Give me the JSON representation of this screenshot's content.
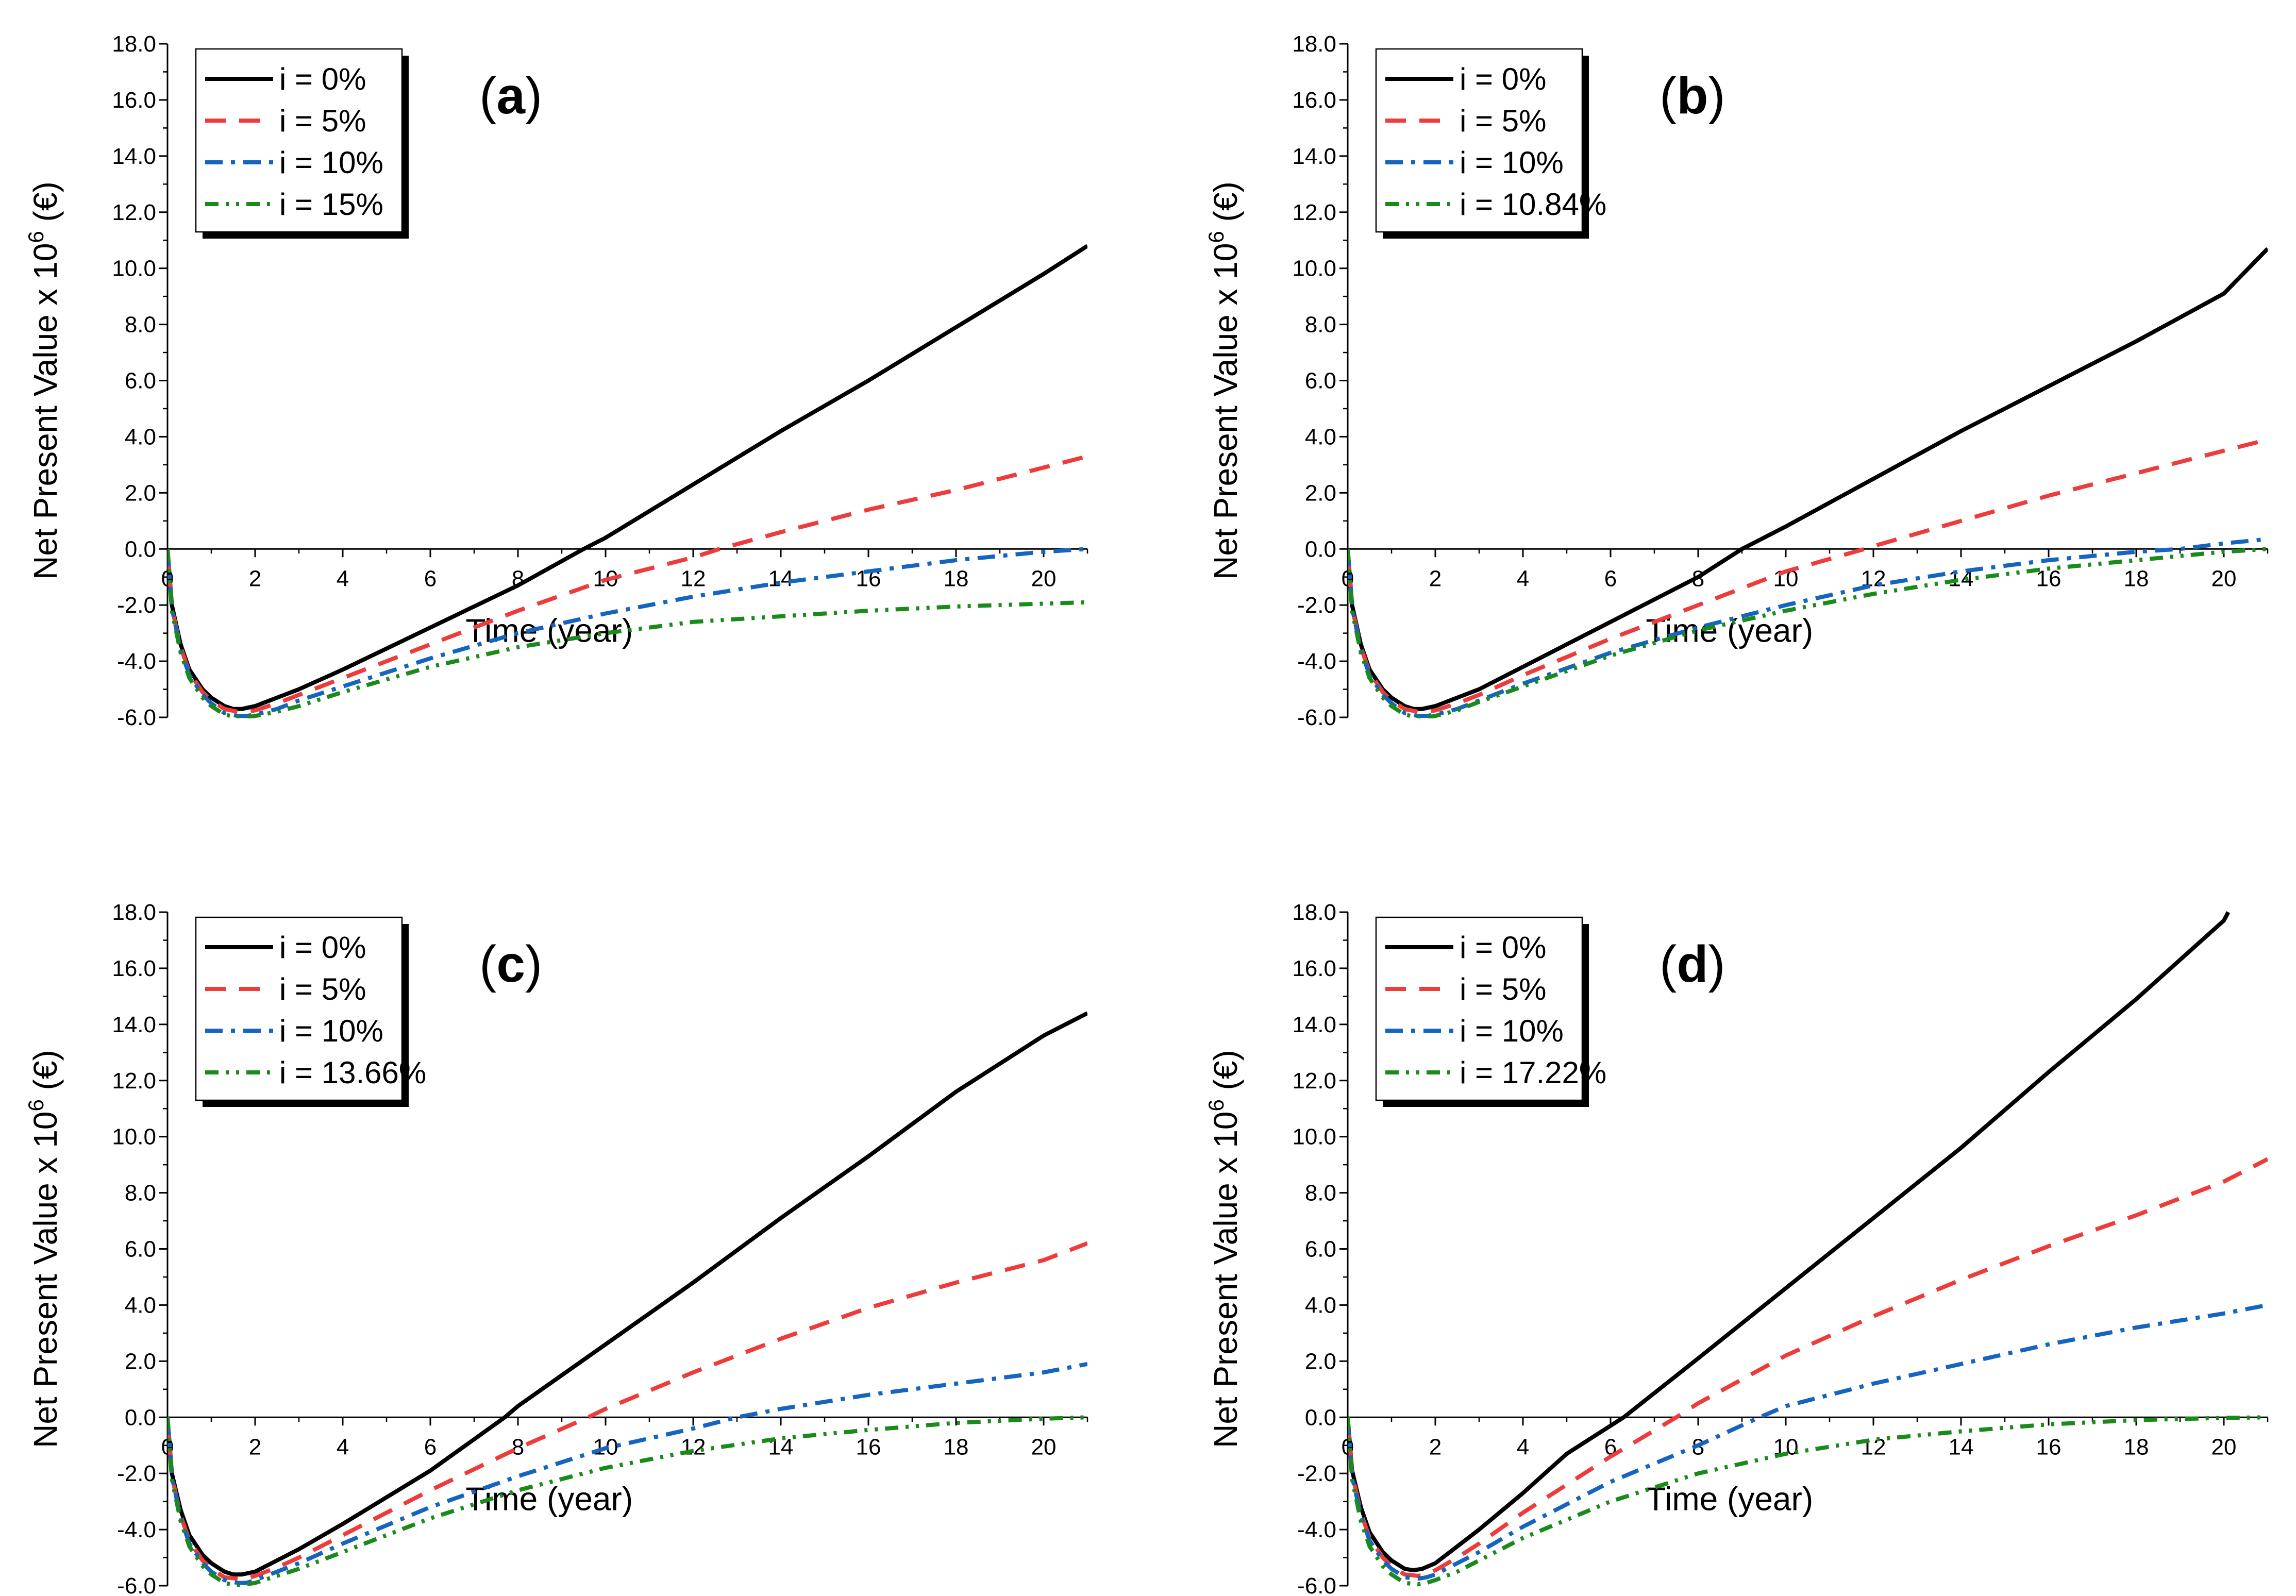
{
  "figure": {
    "colors": {
      "black": "#000000",
      "red": "#EE3B3B",
      "blue": "#1565C0",
      "green": "#1A8A1A"
    },
    "series_styles": [
      "solid",
      "dash",
      "dashdot",
      "dashdotdot"
    ]
  },
  "chart_data": [
    {
      "panel": "a",
      "label_letter": "a",
      "label_open": "(",
      "label_close": ")",
      "type": "line",
      "xlabel": "Time (year)",
      "ylabel_pre": "Net Present Value x 10",
      "ylabel_sup": "6",
      "ylabel_post": " (€)",
      "xlim": [
        0,
        21
      ],
      "ylim": [
        -6,
        18
      ],
      "xticks": [
        "0",
        "2",
        "4",
        "6",
        "8",
        "10",
        "12",
        "14",
        "16",
        "18",
        "20"
      ],
      "yticks": [
        "-6.0",
        "-4.0",
        "-2.0",
        "0.0",
        "2.0",
        "4.0",
        "6.0",
        "8.0",
        "10.0",
        "12.0",
        "14.0",
        "16.0",
        "18.0"
      ],
      "legend_position": "top-left",
      "series": [
        {
          "name": "i = 0%",
          "color": "#000000",
          "style": "solid",
          "x": [
            0,
            0.1,
            0.3,
            0.5,
            0.8,
            1.0,
            1.3,
            1.5,
            1.7,
            2.0,
            2.5,
            3,
            4,
            6,
            8,
            9.5,
            10,
            12,
            14,
            16,
            18,
            20,
            21
          ],
          "y": [
            0,
            -2.0,
            -3.4,
            -4.3,
            -5.0,
            -5.3,
            -5.6,
            -5.7,
            -5.7,
            -5.6,
            -5.3,
            -5.0,
            -4.3,
            -2.8,
            -1.3,
            0,
            0.4,
            2.3,
            4.2,
            6.0,
            7.9,
            9.8,
            10.8
          ]
        },
        {
          "name": "i = 5%",
          "color": "#EE3B3B",
          "style": "dash",
          "x": [
            0,
            0.1,
            0.3,
            0.5,
            0.8,
            1.0,
            1.3,
            1.6,
            1.8,
            2.0,
            2.5,
            3,
            4,
            6,
            8,
            10,
            12,
            12.6,
            14,
            16,
            18,
            20,
            21
          ],
          "y": [
            0,
            -2.1,
            -3.5,
            -4.4,
            -5.1,
            -5.4,
            -5.7,
            -5.8,
            -5.8,
            -5.75,
            -5.5,
            -5.2,
            -4.6,
            -3.4,
            -2.2,
            -1.1,
            -0.3,
            0,
            0.6,
            1.4,
            2.1,
            2.9,
            3.3
          ]
        },
        {
          "name": "i = 10%",
          "color": "#1565C0",
          "style": "dashdot",
          "x": [
            0,
            0.1,
            0.3,
            0.5,
            0.8,
            1.0,
            1.3,
            1.6,
            1.8,
            2.0,
            2.5,
            3,
            4,
            6,
            8,
            10,
            12,
            14,
            16,
            18,
            20,
            21
          ],
          "y": [
            0,
            -2.1,
            -3.6,
            -4.5,
            -5.2,
            -5.5,
            -5.85,
            -5.95,
            -5.95,
            -5.9,
            -5.7,
            -5.4,
            -4.9,
            -3.9,
            -3.0,
            -2.3,
            -1.7,
            -1.2,
            -0.8,
            -0.4,
            -0.1,
            0
          ]
        },
        {
          "name": "i = 15%",
          "color": "#1A8A1A",
          "style": "dashdotdot",
          "x": [
            0,
            0.1,
            0.3,
            0.5,
            0.8,
            1.0,
            1.3,
            1.6,
            1.8,
            2.0,
            2.5,
            3,
            4,
            6,
            8,
            10,
            12,
            14,
            16,
            18,
            20,
            21
          ],
          "y": [
            0,
            -2.2,
            -3.7,
            -4.6,
            -5.3,
            -5.6,
            -5.9,
            -6.0,
            -6.0,
            -5.95,
            -5.8,
            -5.6,
            -5.1,
            -4.2,
            -3.5,
            -3.0,
            -2.6,
            -2.4,
            -2.2,
            -2.05,
            -1.95,
            -1.9
          ]
        }
      ]
    },
    {
      "panel": "b",
      "label_letter": "b",
      "label_open": "(",
      "label_close": ")",
      "type": "line",
      "xlabel": "Time (year)",
      "ylabel_pre": "Net Present Value x 10",
      "ylabel_sup": "6",
      "ylabel_post": " (€)",
      "xlim": [
        0,
        21
      ],
      "ylim": [
        -6,
        18
      ],
      "xticks": [
        "0",
        "2",
        "4",
        "6",
        "8",
        "10",
        "12",
        "14",
        "16",
        "18",
        "20"
      ],
      "yticks": [
        "-6.0",
        "-4.0",
        "-2.0",
        "0.0",
        "2.0",
        "4.0",
        "6.0",
        "8.0",
        "10.0",
        "12.0",
        "14.0",
        "16.0",
        "18.0"
      ],
      "legend_position": "top-left",
      "series": [
        {
          "name": "i = 0%",
          "color": "#000000",
          "style": "solid",
          "x": [
            0,
            0.1,
            0.3,
            0.5,
            0.8,
            1.0,
            1.3,
            1.5,
            1.7,
            2.0,
            2.5,
            3,
            4,
            6,
            8,
            9,
            10,
            12,
            14,
            16,
            18,
            20,
            21
          ],
          "y": [
            0,
            -2.0,
            -3.4,
            -4.3,
            -5.0,
            -5.3,
            -5.6,
            -5.7,
            -5.7,
            -5.6,
            -5.3,
            -5.0,
            -4.2,
            -2.6,
            -1.0,
            0,
            0.8,
            2.5,
            4.2,
            5.8,
            7.4,
            9.1,
            10.7
          ]
        },
        {
          "name": "i = 5%",
          "color": "#EE3B3B",
          "style": "dash",
          "x": [
            0,
            0.1,
            0.3,
            0.5,
            0.8,
            1.0,
            1.3,
            1.6,
            1.8,
            2.0,
            2.5,
            3,
            4,
            6,
            8,
            10,
            11.8,
            12,
            14,
            16,
            18,
            20,
            21
          ],
          "y": [
            0,
            -2.1,
            -3.5,
            -4.4,
            -5.1,
            -5.4,
            -5.7,
            -5.8,
            -5.8,
            -5.75,
            -5.5,
            -5.2,
            -4.5,
            -3.2,
            -2.0,
            -0.8,
            0,
            0.1,
            1.0,
            1.9,
            2.7,
            3.5,
            3.9
          ]
        },
        {
          "name": "i = 10%",
          "color": "#1565C0",
          "style": "dashdot",
          "x": [
            0,
            0.1,
            0.3,
            0.5,
            0.8,
            1.0,
            1.3,
            1.6,
            1.8,
            2.0,
            2.5,
            3,
            4,
            6,
            8,
            10,
            12,
            14,
            16,
            18,
            19,
            20,
            21
          ],
          "y": [
            0,
            -2.1,
            -3.6,
            -4.5,
            -5.2,
            -5.5,
            -5.85,
            -5.95,
            -5.95,
            -5.9,
            -5.7,
            -5.4,
            -4.8,
            -3.7,
            -2.8,
            -2.0,
            -1.3,
            -0.8,
            -0.4,
            -0.1,
            0,
            0.2,
            0.35
          ]
        },
        {
          "name": "i = 10.84%",
          "color": "#1A8A1A",
          "style": "dashdotdot",
          "x": [
            0,
            0.1,
            0.3,
            0.5,
            0.8,
            1.0,
            1.3,
            1.6,
            1.8,
            2.0,
            2.5,
            3,
            4,
            6,
            8,
            10,
            12,
            14,
            16,
            18,
            20,
            21
          ],
          "y": [
            0,
            -2.2,
            -3.7,
            -4.6,
            -5.3,
            -5.6,
            -5.9,
            -6.0,
            -6.0,
            -5.95,
            -5.75,
            -5.45,
            -4.9,
            -3.8,
            -2.9,
            -2.2,
            -1.6,
            -1.1,
            -0.7,
            -0.4,
            -0.1,
            0
          ]
        }
      ]
    },
    {
      "panel": "c",
      "label_letter": "c",
      "label_open": "(",
      "label_close": ")",
      "type": "line",
      "xlabel": "Time (year)",
      "ylabel_pre": "Net Present Value x 10",
      "ylabel_sup": "6",
      "ylabel_post": " (€)",
      "xlim": [
        0,
        21
      ],
      "ylim": [
        -6,
        18
      ],
      "xticks": [
        "0",
        "2",
        "4",
        "6",
        "8",
        "10",
        "12",
        "14",
        "16",
        "18",
        "20"
      ],
      "yticks": [
        "-6.0",
        "-4.0",
        "-2.0",
        "0.0",
        "2.0",
        "4.0",
        "6.0",
        "8.0",
        "10.0",
        "12.0",
        "14.0",
        "16.0",
        "18.0"
      ],
      "legend_position": "top-left",
      "series": [
        {
          "name": "i = 0%",
          "color": "#000000",
          "style": "solid",
          "x": [
            0,
            0.1,
            0.3,
            0.5,
            0.8,
            1.0,
            1.3,
            1.5,
            1.7,
            2.0,
            2.5,
            3,
            4,
            6,
            7.7,
            8,
            10,
            12,
            14,
            16,
            18,
            20,
            21
          ],
          "y": [
            0,
            -2.0,
            -3.3,
            -4.2,
            -4.9,
            -5.2,
            -5.5,
            -5.6,
            -5.6,
            -5.5,
            -5.1,
            -4.7,
            -3.8,
            -1.9,
            0,
            0.4,
            2.6,
            4.8,
            7.1,
            9.3,
            11.6,
            13.6,
            14.4
          ]
        },
        {
          "name": "i = 5%",
          "color": "#EE3B3B",
          "style": "dash",
          "x": [
            0,
            0.1,
            0.3,
            0.5,
            0.8,
            1.0,
            1.3,
            1.6,
            1.8,
            2.0,
            2.5,
            3,
            4,
            6,
            8,
            9.6,
            10,
            12,
            14,
            16,
            18,
            20,
            21
          ],
          "y": [
            0,
            -2.1,
            -3.5,
            -4.4,
            -5.1,
            -5.4,
            -5.7,
            -5.75,
            -5.75,
            -5.65,
            -5.35,
            -5.0,
            -4.2,
            -2.6,
            -1.1,
            0,
            0.3,
            1.6,
            2.8,
            3.9,
            4.8,
            5.6,
            6.2
          ]
        },
        {
          "name": "i = 10%",
          "color": "#1565C0",
          "style": "dashdot",
          "x": [
            0,
            0.1,
            0.3,
            0.5,
            0.8,
            1.0,
            1.3,
            1.6,
            1.8,
            2.0,
            2.5,
            3,
            4,
            6,
            8,
            10,
            12,
            13,
            14,
            16,
            18,
            20,
            21
          ],
          "y": [
            0,
            -2.1,
            -3.6,
            -4.5,
            -5.2,
            -5.5,
            -5.8,
            -5.9,
            -5.9,
            -5.8,
            -5.5,
            -5.2,
            -4.5,
            -3.2,
            -2.1,
            -1.1,
            -0.4,
            0,
            0.3,
            0.8,
            1.2,
            1.6,
            1.9
          ]
        },
        {
          "name": "i = 13.66%",
          "color": "#1A8A1A",
          "style": "dashdotdot",
          "x": [
            0,
            0.1,
            0.3,
            0.5,
            0.8,
            1.0,
            1.3,
            1.6,
            1.8,
            2.0,
            2.5,
            3,
            4,
            6,
            8,
            10,
            12,
            14,
            16,
            18,
            20,
            21
          ],
          "y": [
            0,
            -2.2,
            -3.7,
            -4.6,
            -5.3,
            -5.6,
            -5.9,
            -6.0,
            -5.95,
            -5.9,
            -5.65,
            -5.4,
            -4.8,
            -3.6,
            -2.6,
            -1.8,
            -1.2,
            -0.75,
            -0.45,
            -0.2,
            -0.05,
            0
          ]
        }
      ]
    },
    {
      "panel": "d",
      "label_letter": "d",
      "label_open": "(",
      "label_close": ")",
      "type": "line",
      "xlabel": "Time (year)",
      "ylabel_pre": "Net Present Value x 10",
      "ylabel_sup": "6",
      "ylabel_post": " (€)",
      "xlim": [
        0,
        21
      ],
      "ylim": [
        -6,
        18
      ],
      "xticks": [
        "0",
        "2",
        "4",
        "6",
        "8",
        "10",
        "12",
        "14",
        "16",
        "18",
        "20"
      ],
      "yticks": [
        "-6.0",
        "-4.0",
        "-2.0",
        "0.0",
        "2.0",
        "4.0",
        "6.0",
        "8.0",
        "10.0",
        "12.0",
        "14.0",
        "16.0",
        "18.0"
      ],
      "legend_position": "top-left",
      "series": [
        {
          "name": "i = 0%",
          "color": "#000000",
          "style": "solid",
          "x": [
            0,
            0.1,
            0.3,
            0.5,
            0.8,
            1.0,
            1.3,
            1.5,
            1.7,
            2.0,
            2.5,
            3,
            4,
            5,
            6,
            6.3,
            8,
            10,
            12,
            14,
            16,
            18,
            20,
            20.1
          ],
          "y": [
            0,
            -1.9,
            -3.2,
            -4.1,
            -4.8,
            -5.1,
            -5.4,
            -5.45,
            -5.4,
            -5.2,
            -4.6,
            -4.0,
            -2.7,
            -1.3,
            -0.3,
            0,
            2.1,
            4.6,
            7.1,
            9.6,
            12.3,
            14.9,
            17.7,
            18.0
          ]
        },
        {
          "name": "i = 5%",
          "color": "#EE3B3B",
          "style": "dash",
          "x": [
            0,
            0.1,
            0.3,
            0.5,
            0.8,
            1.0,
            1.3,
            1.6,
            1.8,
            2.0,
            2.5,
            3,
            4,
            6,
            7.5,
            8,
            10,
            12,
            14,
            16,
            18,
            20,
            21
          ],
          "y": [
            0,
            -2.0,
            -3.4,
            -4.3,
            -5.0,
            -5.3,
            -5.6,
            -5.65,
            -5.6,
            -5.45,
            -5.0,
            -4.5,
            -3.4,
            -1.4,
            0,
            0.5,
            2.2,
            3.6,
            4.9,
            6.1,
            7.2,
            8.4,
            9.2
          ]
        },
        {
          "name": "i = 10%",
          "color": "#1565C0",
          "style": "dashdot",
          "x": [
            0,
            0.1,
            0.3,
            0.5,
            0.8,
            1.0,
            1.3,
            1.6,
            1.8,
            2.0,
            2.5,
            3,
            4,
            6,
            8,
            9.4,
            10,
            12,
            14,
            16,
            18,
            20,
            21
          ],
          "y": [
            0,
            -2.1,
            -3.5,
            -4.4,
            -5.1,
            -5.4,
            -5.7,
            -5.75,
            -5.7,
            -5.6,
            -5.2,
            -4.8,
            -3.9,
            -2.3,
            -1.0,
            0,
            0.4,
            1.2,
            1.9,
            2.6,
            3.2,
            3.7,
            4.0
          ]
        },
        {
          "name": "i = 17.22%",
          "color": "#1A8A1A",
          "style": "dashdotdot",
          "x": [
            0,
            0.1,
            0.3,
            0.5,
            0.8,
            1.0,
            1.3,
            1.6,
            1.8,
            2.0,
            2.5,
            3,
            4,
            6,
            8,
            10,
            12,
            14,
            16,
            18,
            20,
            21
          ],
          "y": [
            0,
            -2.2,
            -3.7,
            -4.6,
            -5.3,
            -5.6,
            -5.9,
            -5.95,
            -5.9,
            -5.8,
            -5.5,
            -5.1,
            -4.3,
            -3.0,
            -2.0,
            -1.3,
            -0.8,
            -0.5,
            -0.25,
            -0.1,
            -0.02,
            0
          ]
        }
      ]
    }
  ]
}
